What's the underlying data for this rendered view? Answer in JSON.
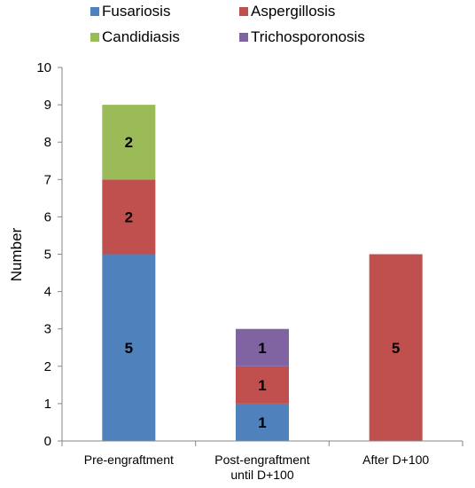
{
  "chart_data": {
    "type": "bar",
    "stacked": true,
    "categories": [
      [
        "Pre-engraftment"
      ],
      [
        "Post-engraftment",
        "until D+100"
      ],
      [
        "After D+100"
      ]
    ],
    "series": [
      {
        "name": "Fusariosis",
        "color": "#4F81BD",
        "values": [
          5,
          1,
          0
        ]
      },
      {
        "name": "Aspergillosis",
        "color": "#C0504D",
        "values": [
          2,
          1,
          5
        ]
      },
      {
        "name": "Candidiasis",
        "color": "#9BBB59",
        "values": [
          2,
          0,
          0
        ]
      },
      {
        "name": "Trichosporonosis",
        "color": "#8064A2",
        "values": [
          0,
          1,
          0
        ]
      }
    ],
    "ylabel": "Number",
    "ylim": [
      0,
      10
    ],
    "yticks": [
      0,
      1,
      2,
      3,
      4,
      5,
      6,
      7,
      8,
      9,
      10
    ],
    "grid": false,
    "legend": "top",
    "data_labels": true
  }
}
